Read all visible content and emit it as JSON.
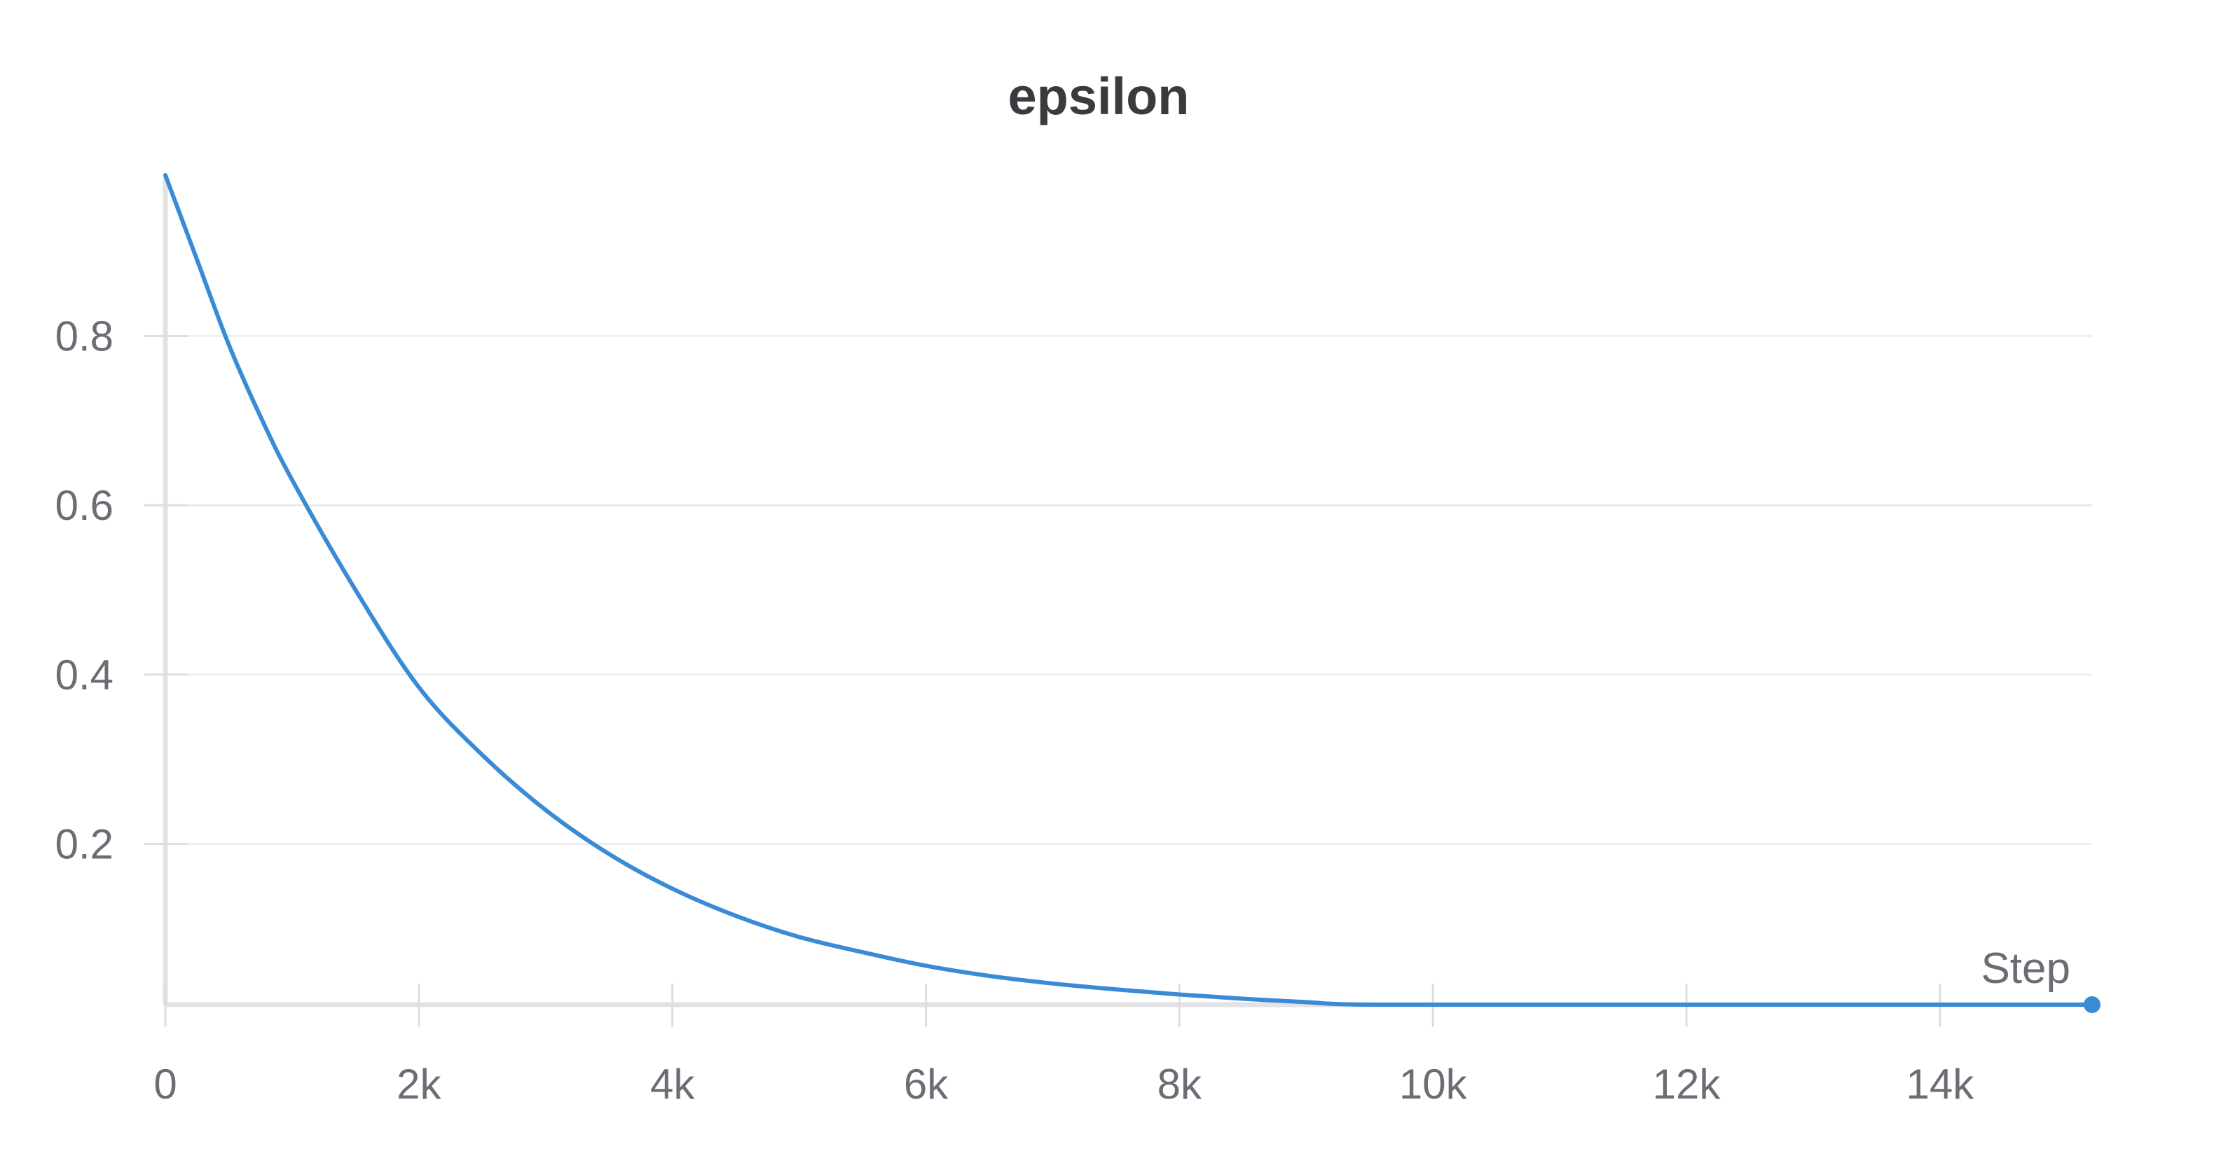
{
  "chart_data": {
    "type": "line",
    "title": "epsilon",
    "xlabel": "Step",
    "ylabel": "",
    "xlim": [
      0,
      15200
    ],
    "ylim": [
      0.01,
      0.99
    ],
    "x_ticks": [
      0,
      2000,
      4000,
      6000,
      8000,
      10000,
      12000,
      14000
    ],
    "x_tick_labels": [
      "0",
      "2k",
      "4k",
      "6k",
      "8k",
      "10k",
      "12k",
      "14k"
    ],
    "y_ticks": [
      0.2,
      0.4,
      0.6,
      0.8
    ],
    "y_tick_labels": [
      "0.2",
      "0.4",
      "0.6",
      "0.8"
    ],
    "grid": true,
    "legend": "none",
    "series_color": "#3a8bd6",
    "series": [
      {
        "x": [
          0,
          250,
          500,
          750,
          1000,
          1500,
          2000,
          2500,
          3000,
          3500,
          4000,
          4500,
          5000,
          5500,
          6000,
          6500,
          7000,
          7500,
          8000,
          8500,
          9000,
          9200,
          9500,
          10000,
          11000,
          12000,
          13000,
          14000,
          15200
        ],
        "y": [
          0.99,
          0.89,
          0.79,
          0.705,
          0.63,
          0.5,
          0.385,
          0.305,
          0.24,
          0.188,
          0.147,
          0.115,
          0.09,
          0.072,
          0.056,
          0.044,
          0.035,
          0.028,
          0.022,
          0.017,
          0.013,
          0.011,
          0.01,
          0.01,
          0.01,
          0.01,
          0.01,
          0.01,
          0.01
        ]
      }
    ]
  }
}
